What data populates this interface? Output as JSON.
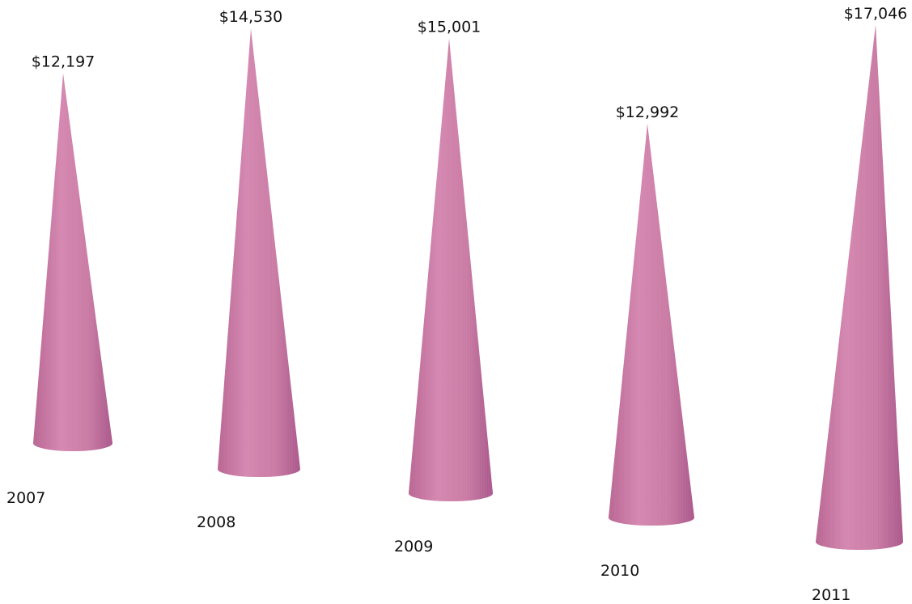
{
  "chart_data": {
    "type": "bar",
    "shape": "cone",
    "categories": [
      "2007",
      "2008",
      "2009",
      "2010",
      "2011"
    ],
    "values": [
      12197,
      14530,
      15001,
      12992,
      17046
    ],
    "value_labels": [
      "$12,197",
      "$14,530",
      "$15,001",
      "$12,992",
      "$17,046"
    ],
    "title": "",
    "xlabel": "",
    "ylabel": "",
    "grid": false,
    "legend": "none",
    "color": "#c97aa3"
  }
}
